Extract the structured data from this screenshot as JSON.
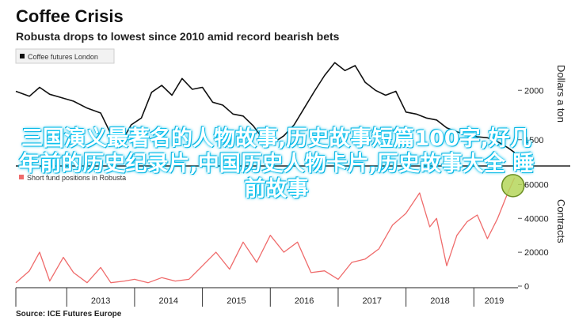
{
  "header": {
    "title": "Coffee Crisis",
    "subtitle": "Robusta drops to lowest since 2010 amid record bearish bets"
  },
  "source": "Source: ICE Futures Europe",
  "overlay_text": "三国演义最著名的人物故事,历史故事短篇100字,好几年前的历史纪录片,中国历史人物卡片,历史故事大全 睡前故事",
  "colors": {
    "price_line": "#111111",
    "contracts_line": "#ef6b6b",
    "highlight_fill": "#b5d65a",
    "highlight_stroke": "#6b8e23"
  },
  "chart_data": [
    {
      "type": "line",
      "legend": [
        "Coffee futures London"
      ],
      "ylabel": "Dollars a ton",
      "yticks": [
        1500,
        2000
      ],
      "ylim": [
        1250,
        2450
      ],
      "xlim": [
        2012.25,
        2019.65
      ],
      "series": [
        {
          "name": "Coffee futures London",
          "x": [
            2012.25,
            2012.45,
            2012.6,
            2012.75,
            2012.9,
            2013.1,
            2013.3,
            2013.5,
            2013.65,
            2013.8,
            2013.95,
            2014.1,
            2014.25,
            2014.4,
            2014.55,
            2014.7,
            2014.85,
            2015.0,
            2015.15,
            2015.3,
            2015.45,
            2015.6,
            2015.75,
            2015.9,
            2016.05,
            2016.2,
            2016.35,
            2016.5,
            2016.65,
            2016.8,
            2016.95,
            2017.1,
            2017.25,
            2017.4,
            2017.55,
            2017.7,
            2017.85,
            2018.0,
            2018.15,
            2018.3,
            2018.45,
            2018.6,
            2018.75,
            2018.9,
            2019.05,
            2019.2,
            2019.35,
            2019.5,
            2019.6
          ],
          "y": [
            1990,
            1940,
            2030,
            1960,
            1930,
            1890,
            1820,
            1770,
            1560,
            1470,
            1650,
            1720,
            1980,
            2050,
            1950,
            2120,
            2010,
            2030,
            1880,
            1850,
            1760,
            1740,
            1640,
            1500,
            1470,
            1540,
            1650,
            1820,
            1990,
            2150,
            2280,
            2200,
            2250,
            2080,
            2000,
            1950,
            1990,
            1780,
            1760,
            1720,
            1700,
            1620,
            1580,
            1550,
            1530,
            1520,
            1480,
            1420,
            1370
          ]
        }
      ]
    },
    {
      "type": "line",
      "legend": [
        "Short fund positions in Robusta"
      ],
      "ylabel": "Contracts",
      "yticks": [
        0,
        20000,
        40000,
        60000
      ],
      "ylim": [
        0,
        70000
      ],
      "xlim": [
        2012.25,
        2019.65
      ],
      "series": [
        {
          "name": "Short fund positions in Robusta",
          "x": [
            2012.25,
            2012.45,
            2012.6,
            2012.75,
            2012.95,
            2013.1,
            2013.3,
            2013.5,
            2013.65,
            2013.85,
            2014.0,
            2014.2,
            2014.4,
            2014.6,
            2014.8,
            2015.0,
            2015.2,
            2015.4,
            2015.6,
            2015.8,
            2016.0,
            2016.2,
            2016.4,
            2016.6,
            2016.8,
            2017.0,
            2017.2,
            2017.4,
            2017.6,
            2017.8,
            2018.0,
            2018.2,
            2018.35,
            2018.45,
            2018.6,
            2018.75,
            2018.9,
            2019.05,
            2019.2,
            2019.35,
            2019.5,
            2019.6
          ],
          "y": [
            2000,
            9000,
            20000,
            3000,
            17000,
            8000,
            2000,
            11000,
            2000,
            3000,
            4000,
            2000,
            5000,
            3000,
            4000,
            12000,
            20000,
            10000,
            26000,
            14000,
            30000,
            20000,
            26000,
            8000,
            9000,
            4000,
            14000,
            16000,
            22000,
            36000,
            43000,
            55000,
            35000,
            40000,
            12000,
            30000,
            38000,
            42000,
            28000,
            40000,
            55000,
            64000
          ]
        }
      ]
    }
  ],
  "xaxis": {
    "ticks": [
      "2013",
      "2014",
      "2015",
      "2016",
      "2017",
      "2018",
      "2019"
    ]
  }
}
